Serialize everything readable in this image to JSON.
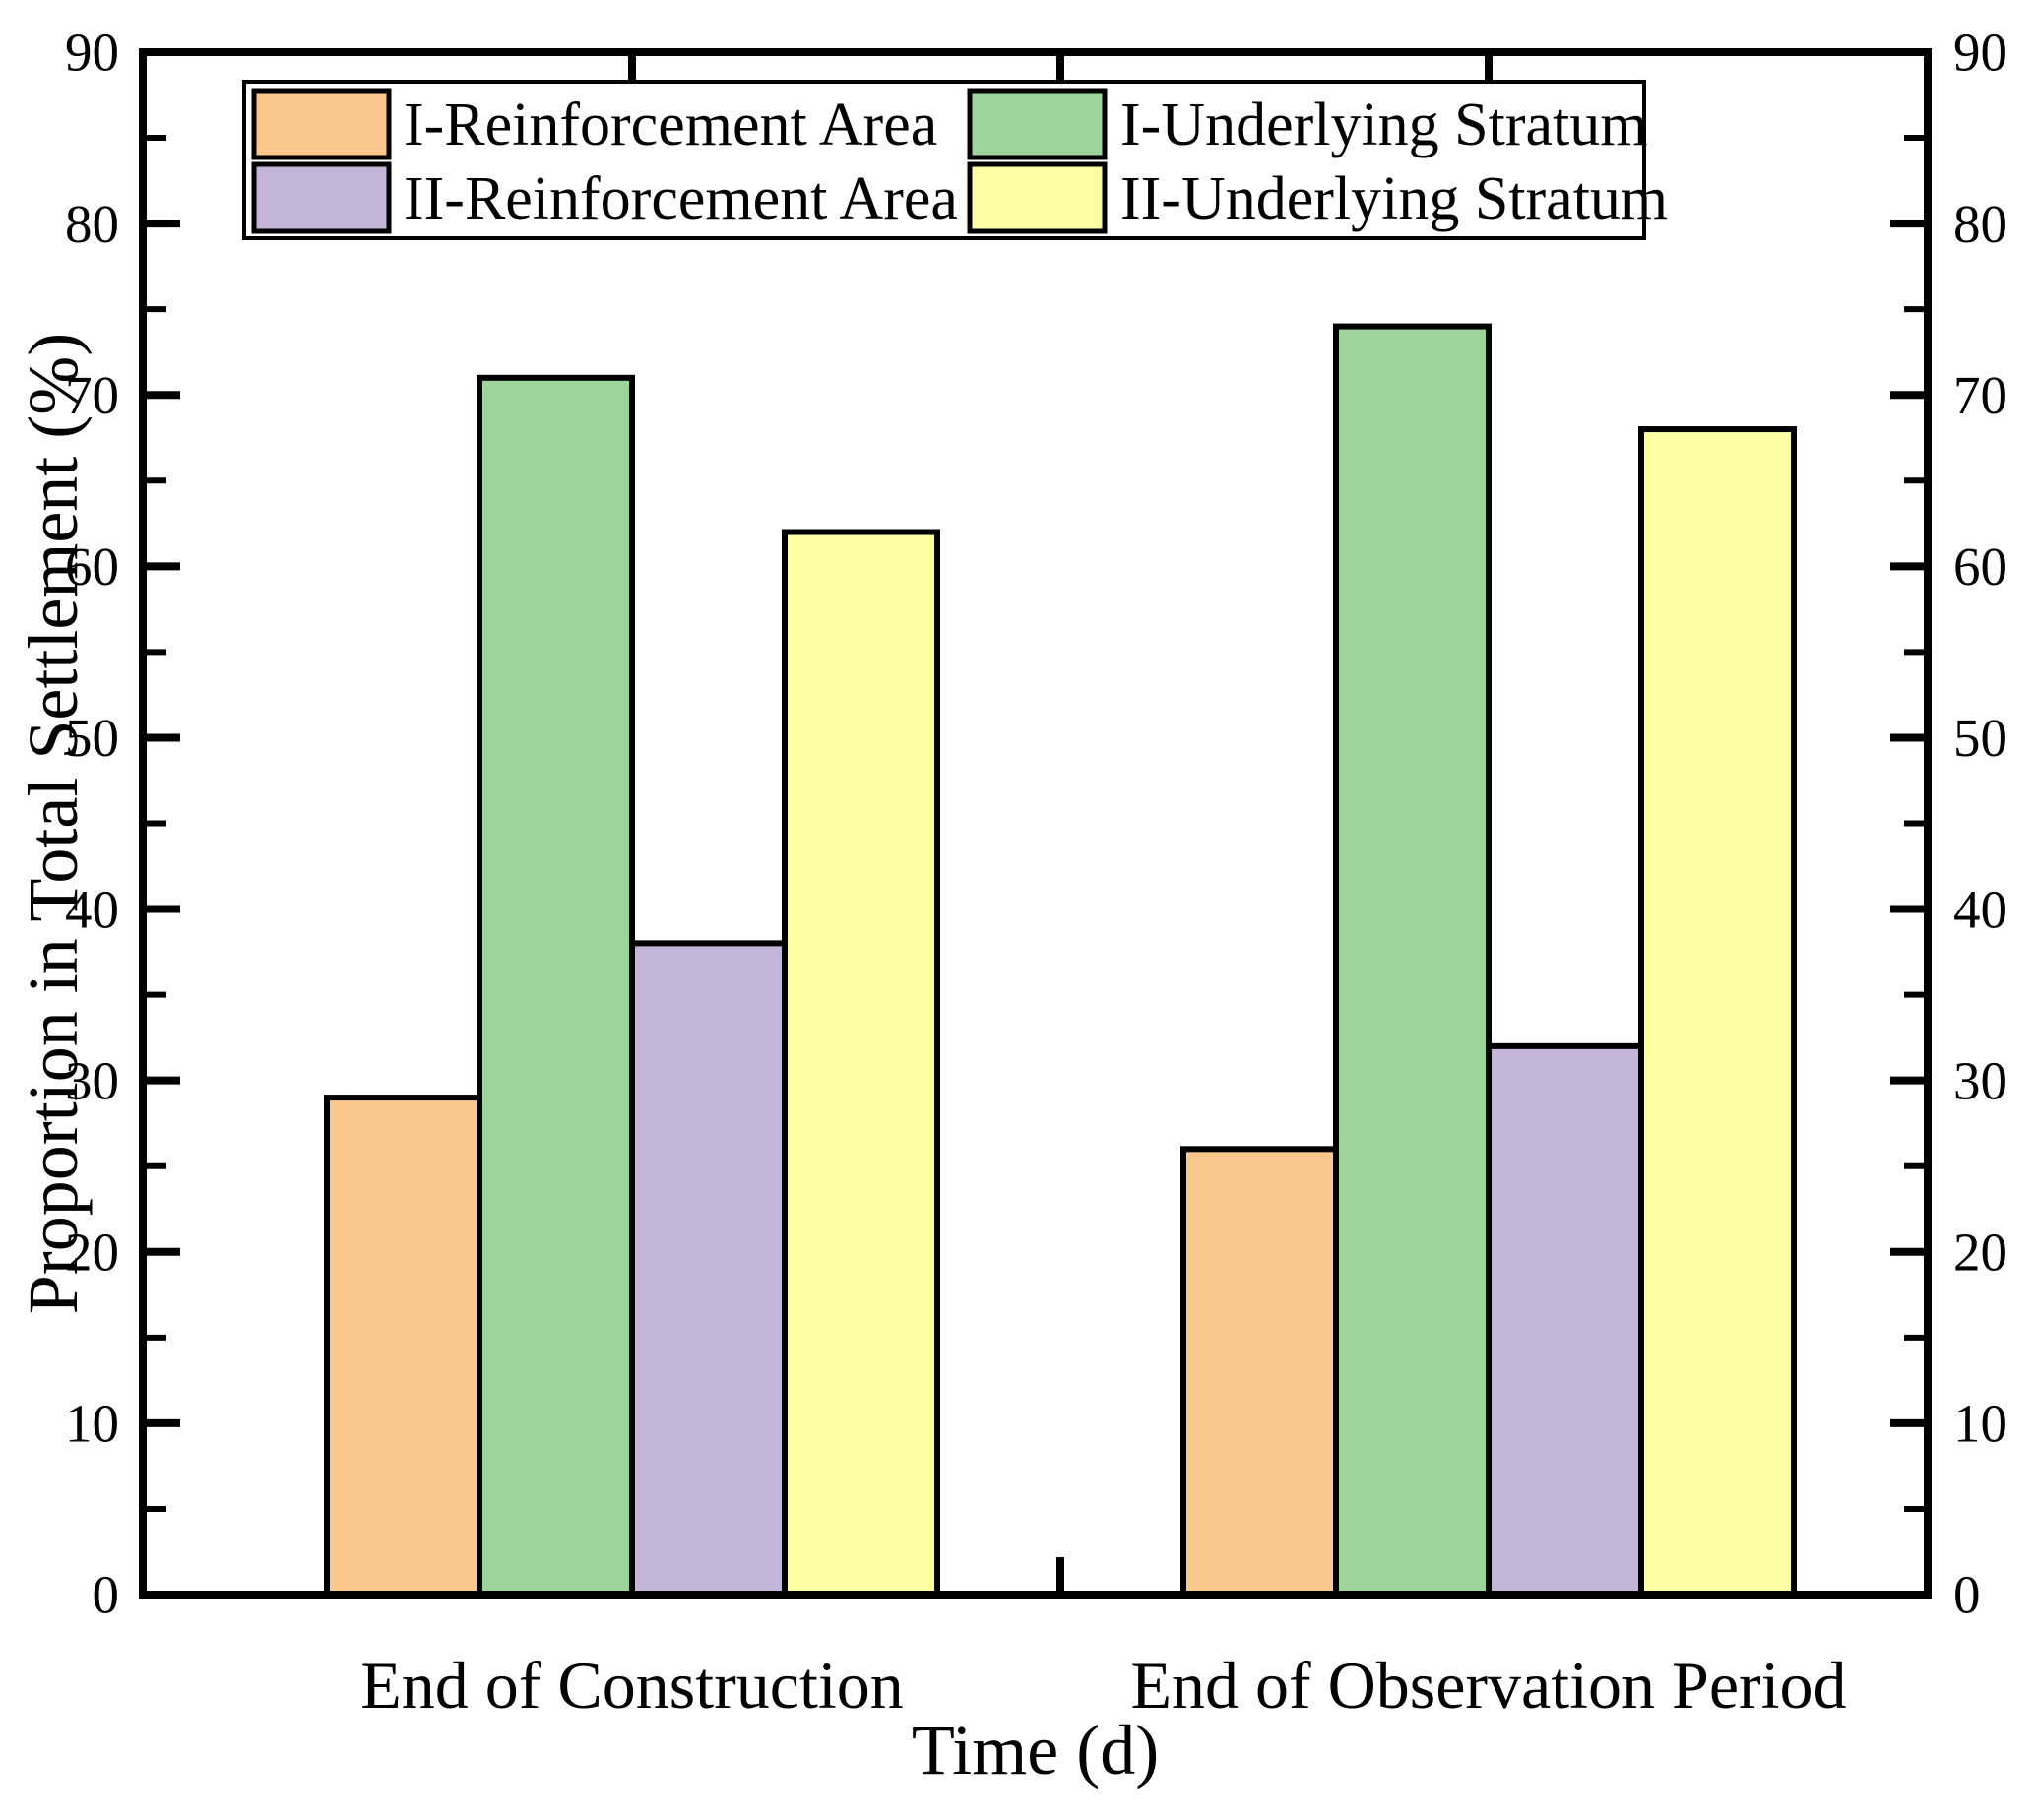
{
  "figure": {
    "background": "#ffffff",
    "frame_color": "#000000"
  },
  "chart_data": {
    "type": "bar",
    "categories": [
      "End of Construction",
      "End of Observation Period"
    ],
    "series": [
      {
        "name": "I-Reinforcement Area",
        "color": "#FAC78D",
        "values": [
          29,
          26
        ]
      },
      {
        "name": "I-Underlying Stratum",
        "color": "#9CD49B",
        "values": [
          71,
          74
        ]
      },
      {
        "name": "II-Reinforcement Area",
        "color": "#C4B4D8",
        "values": [
          38,
          32
        ]
      },
      {
        "name": "II-Underlying Stratum",
        "color": "#FDFDA4",
        "values": [
          62,
          68
        ]
      }
    ],
    "xlabel": "Time (d)",
    "ylabel": "Proportion in Total Settlement (%)",
    "ylim": [
      0,
      90
    ],
    "y_major_step": 10,
    "y_minor_step": 5,
    "grid": false,
    "bar_edge_color": "#000000",
    "legend_position": "top-left-inside",
    "legend_grid": [
      [
        0,
        1
      ],
      [
        2,
        3
      ]
    ]
  },
  "y_axis": {
    "tick_labels": [
      "0",
      "10",
      "20",
      "30",
      "40",
      "50",
      "60",
      "70",
      "80",
      "90"
    ]
  }
}
